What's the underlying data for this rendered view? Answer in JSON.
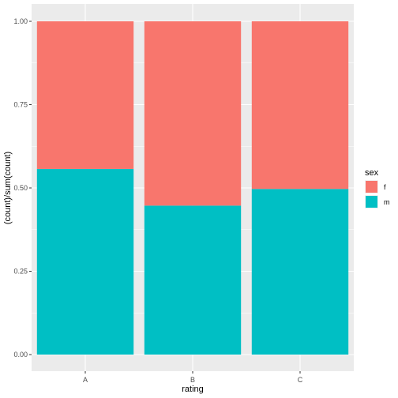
{
  "chart_data": {
    "type": "bar",
    "stacked": true,
    "categories": [
      "A",
      "B",
      "C"
    ],
    "series": [
      {
        "name": "f",
        "values": [
          0.443,
          0.553,
          0.503
        ],
        "color": "#F8766D"
      },
      {
        "name": "m",
        "values": [
          0.557,
          0.447,
          0.497
        ],
        "color": "#00BFC4"
      }
    ],
    "xlabel": "rating",
    "ylabel": "(count)/sum(count)",
    "ylim": [
      0,
      1
    ],
    "yticks": [
      "0.00",
      "0.25",
      "0.50",
      "0.75",
      "1.00"
    ],
    "ytick_values": [
      0,
      0.25,
      0.5,
      0.75,
      1.0
    ],
    "legend": {
      "title": "sex",
      "position": "right"
    },
    "panel_background": "#EBEBEB",
    "grid": true
  }
}
